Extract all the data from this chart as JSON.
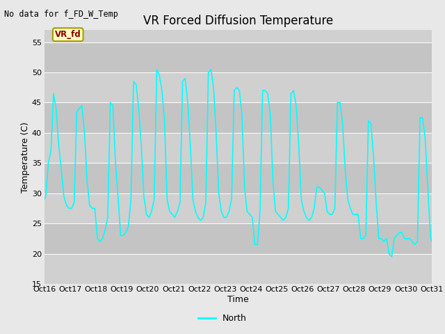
{
  "title": "VR Forced Diffusion Temperature",
  "xlabel": "Time",
  "ylabel": "Temperature (C)",
  "annotation_text": "No data for f_FD_W_Temp",
  "ylim": [
    15,
    57
  ],
  "yticks": [
    15,
    20,
    25,
    30,
    35,
    40,
    45,
    50,
    55
  ],
  "line_color": "#00FFFF",
  "line_width": 1.2,
  "bg_color": "#E8E8E8",
  "band_colors": [
    "#D0D0D0",
    "#C4C4C4"
  ],
  "legend_label": "North",
  "vr_fd_label": "VR_fd",
  "vr_fd_box_facecolor": "#FFFFC0",
  "vr_fd_box_edgecolor": "#A0A000",
  "vr_fd_text_color": "#8B0000",
  "title_fontsize": 12,
  "axis_label_fontsize": 9,
  "tick_fontsize": 8,
  "annotation_fontsize": 8.5,
  "x_labels": [
    "Oct 16",
    "Oct 17",
    "Oct 18",
    "Oct 19",
    "Oct 20",
    "Oct 21",
    "Oct 22",
    "Oct 23",
    "Oct 24",
    "Oct 25",
    "Oct 26",
    "Oct 27",
    "Oct 28",
    "Oct 29",
    "Oct 30",
    "Oct 31"
  ],
  "x_positions": [
    0,
    1,
    2,
    3,
    4,
    5,
    6,
    7,
    8,
    9,
    10,
    11,
    12,
    13,
    14,
    15
  ],
  "data_x": [
    0.0,
    0.05,
    0.15,
    0.25,
    0.35,
    0.45,
    0.55,
    0.65,
    0.75,
    0.85,
    0.95,
    1.05,
    1.15,
    1.25,
    1.35,
    1.45,
    1.55,
    1.65,
    1.75,
    1.85,
    1.95,
    2.05,
    2.15,
    2.25,
    2.35,
    2.45,
    2.55,
    2.65,
    2.75,
    2.85,
    2.95,
    3.05,
    3.15,
    3.25,
    3.35,
    3.45,
    3.55,
    3.65,
    3.75,
    3.85,
    3.95,
    4.05,
    4.15,
    4.25,
    4.35,
    4.45,
    4.55,
    4.65,
    4.75,
    4.85,
    4.95,
    5.05,
    5.15,
    5.25,
    5.35,
    5.45,
    5.55,
    5.65,
    5.75,
    5.85,
    5.95,
    6.05,
    6.15,
    6.25,
    6.35,
    6.45,
    6.55,
    6.65,
    6.75,
    6.85,
    6.95,
    7.05,
    7.15,
    7.25,
    7.35,
    7.45,
    7.55,
    7.65,
    7.75,
    7.85,
    7.95,
    8.05,
    8.15,
    8.25,
    8.35,
    8.45,
    8.55,
    8.65,
    8.75,
    8.85,
    8.95,
    9.05,
    9.15,
    9.25,
    9.35,
    9.45,
    9.55,
    9.65,
    9.75,
    9.85,
    9.95,
    10.05,
    10.15,
    10.25,
    10.35,
    10.45,
    10.55,
    10.65,
    10.75,
    10.85,
    10.95,
    11.05,
    11.15,
    11.25,
    11.35,
    11.45,
    11.55,
    11.65,
    11.75,
    11.85,
    11.95,
    12.05,
    12.15,
    12.25,
    12.35,
    12.45,
    12.55,
    12.65,
    12.75,
    12.85,
    12.95,
    13.05,
    13.15,
    13.25,
    13.35,
    13.45,
    13.55,
    13.65,
    13.75,
    13.85,
    13.95,
    14.05,
    14.15,
    14.25,
    14.35,
    14.45,
    14.55,
    14.65,
    14.75,
    14.85,
    14.95,
    15.0
  ],
  "data_y": [
    29.0,
    29.5,
    35.0,
    37.0,
    46.5,
    44.0,
    38.0,
    34.0,
    29.5,
    28.0,
    27.5,
    27.5,
    28.5,
    43.5,
    44.0,
    44.5,
    40.0,
    32.0,
    28.0,
    27.5,
    27.5,
    22.5,
    22.0,
    22.5,
    24.0,
    26.0,
    45.0,
    44.5,
    35.0,
    29.5,
    23.0,
    23.0,
    23.5,
    24.5,
    29.0,
    48.5,
    48.0,
    44.0,
    38.0,
    29.5,
    26.5,
    26.0,
    27.0,
    29.0,
    50.5,
    49.5,
    47.0,
    42.0,
    29.0,
    27.0,
    26.5,
    26.0,
    27.0,
    28.5,
    48.5,
    49.0,
    45.0,
    38.0,
    29.0,
    27.0,
    26.0,
    25.5,
    26.0,
    28.5,
    50.0,
    50.5,
    47.5,
    40.0,
    30.0,
    27.0,
    26.0,
    26.0,
    27.0,
    29.0,
    47.0,
    47.5,
    47.0,
    43.0,
    31.0,
    27.0,
    26.5,
    26.0,
    21.5,
    21.5,
    27.0,
    47.0,
    47.0,
    46.5,
    43.0,
    32.0,
    27.0,
    26.5,
    26.0,
    25.5,
    26.0,
    27.5,
    46.5,
    47.0,
    44.5,
    38.0,
    29.0,
    27.0,
    26.0,
    25.5,
    26.0,
    27.5,
    31.0,
    31.0,
    30.5,
    30.0,
    27.0,
    26.5,
    26.5,
    27.5,
    45.0,
    45.0,
    41.5,
    34.0,
    29.0,
    27.5,
    26.5,
    26.5,
    26.5,
    22.5,
    22.5,
    23.0,
    42.0,
    41.5,
    36.0,
    28.5,
    22.5,
    22.5,
    22.0,
    22.5,
    20.0,
    19.5,
    22.5,
    23.0,
    23.5,
    23.5,
    22.5,
    22.5,
    22.5,
    22.0,
    21.5,
    22.0,
    42.5,
    42.5,
    39.0,
    31.0,
    23.0,
    22.0
  ]
}
